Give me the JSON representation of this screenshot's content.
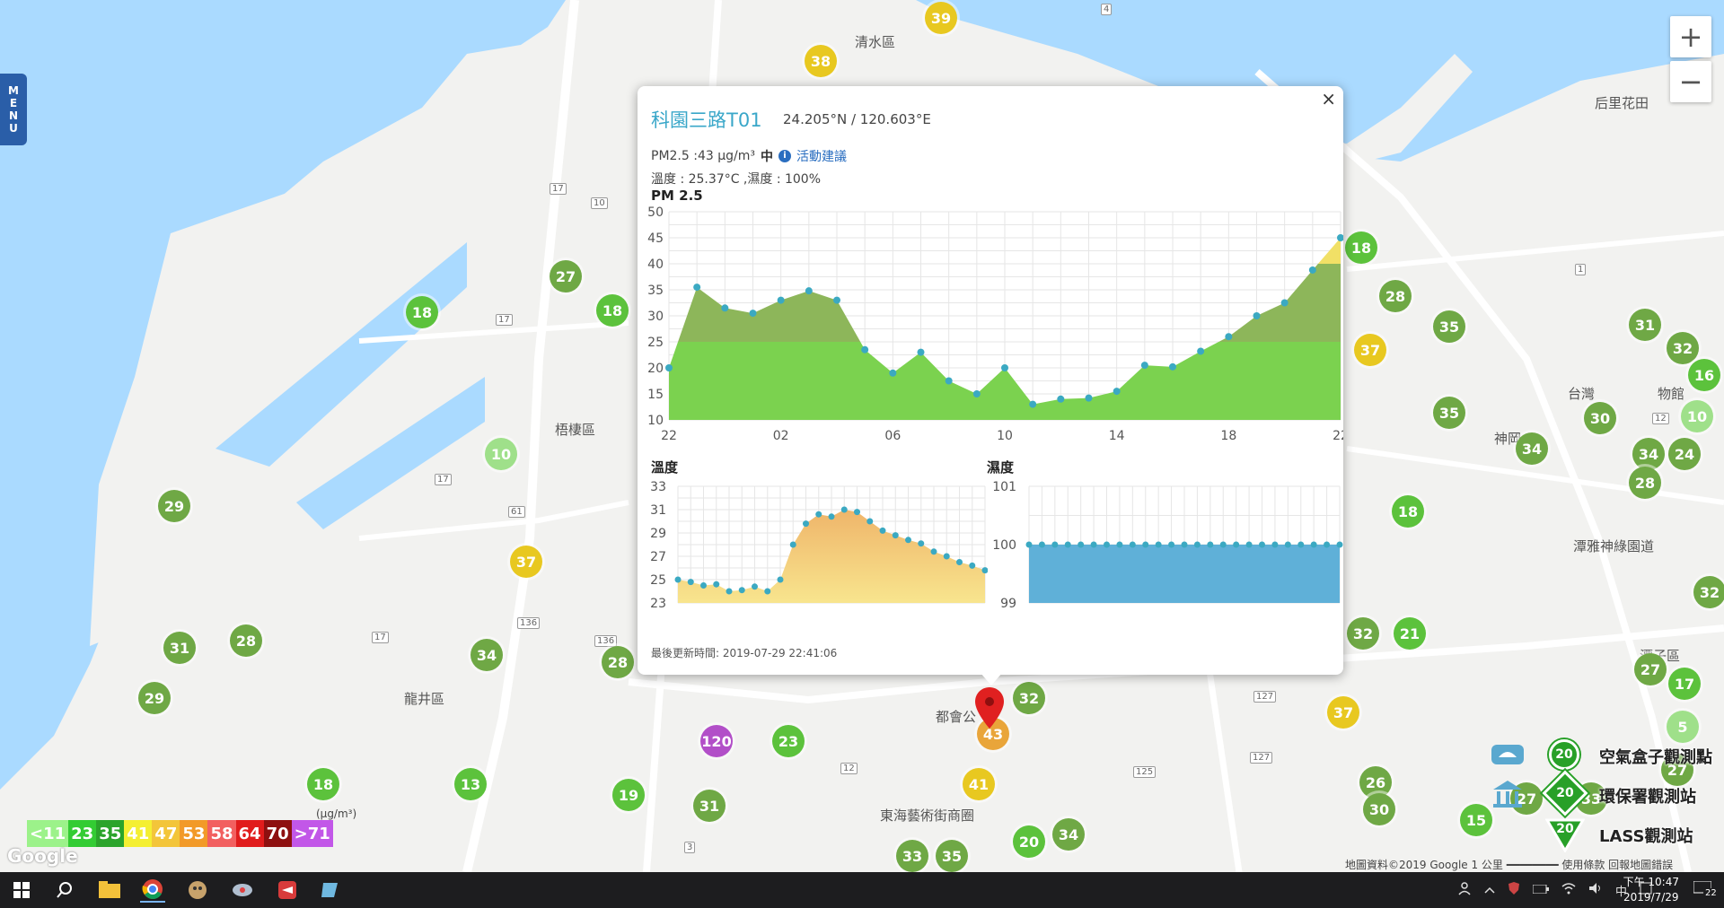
{
  "map": {
    "places": [
      "清水區",
      "梧棲區",
      "龍井區",
      "東海藝術街商圈",
      "都會公",
      "后里花田",
      "台灣",
      "物館",
      "神岡",
      "潭雅神綠園道",
      "潭子區"
    ],
    "road_numbers": [
      "17",
      "10",
      "17",
      "17",
      "17",
      "61",
      "136",
      "136",
      "12",
      "127",
      "127",
      "125",
      "1",
      "12",
      "3",
      "4"
    ],
    "markers": [
      {
        "value": "39",
        "color": "#e8c820"
      },
      {
        "value": "38",
        "color": "#e8c820"
      },
      {
        "value": "27",
        "color": "#6fa845"
      },
      {
        "value": "18",
        "color": "#5cc23c"
      },
      {
        "value": "18",
        "color": "#5cc23c"
      },
      {
        "value": "10",
        "color": "#9fe08a"
      },
      {
        "value": "29",
        "color": "#6fa845"
      },
      {
        "value": "37",
        "color": "#e8c820"
      },
      {
        "value": "31",
        "color": "#6fa845"
      },
      {
        "value": "28",
        "color": "#6fa845"
      },
      {
        "value": "29",
        "color": "#6fa845"
      },
      {
        "value": "34",
        "color": "#6fa845"
      },
      {
        "value": "28",
        "color": "#6fa845"
      },
      {
        "value": "18",
        "color": "#5cc23c"
      },
      {
        "value": "13",
        "color": "#5cc23c"
      },
      {
        "value": "19",
        "color": "#5cc23c"
      },
      {
        "value": "31",
        "color": "#6fa845"
      },
      {
        "value": "120",
        "color": "#b24fc8"
      },
      {
        "value": "23",
        "color": "#5cc23c"
      },
      {
        "value": "41",
        "color": "#e8c820"
      },
      {
        "value": "32",
        "color": "#6fa845"
      },
      {
        "value": "43",
        "color": "#e9a53a"
      },
      {
        "value": "33",
        "color": "#6fa845"
      },
      {
        "value": "35",
        "color": "#6fa845"
      },
      {
        "value": "20",
        "color": "#5cc23c"
      },
      {
        "value": "34",
        "color": "#6fa845"
      },
      {
        "value": "18",
        "color": "#5cc23c"
      },
      {
        "value": "28",
        "color": "#6fa845"
      },
      {
        "value": "37",
        "color": "#e8c820"
      },
      {
        "value": "35",
        "color": "#6fa845"
      },
      {
        "value": "31",
        "color": "#6fa845"
      },
      {
        "value": "32",
        "color": "#6fa845"
      },
      {
        "value": "16",
        "color": "#5cc23c"
      },
      {
        "value": "35",
        "color": "#6fa845"
      },
      {
        "value": "30",
        "color": "#6fa845"
      },
      {
        "value": "34",
        "color": "#6fa845"
      },
      {
        "value": "10",
        "color": "#9fe08a"
      },
      {
        "value": "34",
        "color": "#6fa845"
      },
      {
        "value": "24",
        "color": "#6fa845"
      },
      {
        "value": "28",
        "color": "#6fa845"
      },
      {
        "value": "18",
        "color": "#5cc23c"
      },
      {
        "value": "32",
        "color": "#6fa845"
      },
      {
        "value": "21",
        "color": "#5cc23c"
      },
      {
        "value": "37",
        "color": "#e8c820"
      },
      {
        "value": "27",
        "color": "#6fa845"
      },
      {
        "value": "17",
        "color": "#5cc23c"
      },
      {
        "value": "5",
        "color": "#9fe08a"
      },
      {
        "value": "26",
        "color": "#6fa845"
      },
      {
        "value": "30",
        "color": "#6fa845"
      },
      {
        "value": "15",
        "color": "#5cc23c"
      },
      {
        "value": "27",
        "color": "#6fa845"
      },
      {
        "value": "33",
        "color": "#6fa845"
      },
      {
        "value": "27",
        "color": "#6fa845"
      },
      {
        "value": "32",
        "color": "#6fa845"
      }
    ]
  },
  "menu_tab": {
    "letters": [
      "M",
      "E",
      "N",
      "U"
    ]
  },
  "zoom": {
    "in": "+",
    "out": "−"
  },
  "popup": {
    "close": "×",
    "station_name": "科園三路T01",
    "coords": "24.205°N / 120.603°E",
    "pm_text": "PM2.5 :43 μg/m³",
    "pm_level": "中",
    "info_glyph": "i",
    "activity_link": "活動建議",
    "weather": "溫度 : 25.37°C ,濕度 : 100%",
    "update_time": "最後更新時間: 2019-07-29 22:41:06"
  },
  "chart_data": [
    {
      "type": "area",
      "title": "PM 2.5",
      "x_ticks": [
        "22",
        "02",
        "06",
        "10",
        "14",
        "18",
        "22"
      ],
      "y_ticks": [
        "10",
        "15",
        "20",
        "25",
        "30",
        "35",
        "40",
        "45",
        "50"
      ],
      "ylim": [
        10,
        50
      ],
      "threshold": 25,
      "colors": {
        "base": "#7bd24f",
        "upper": "#8db65a",
        "top": "#f1e066",
        "point": "#3ba9c2"
      },
      "values": [
        20,
        35.5,
        31.5,
        30.5,
        33,
        34.8,
        33,
        23.5,
        19,
        23,
        17.5,
        15,
        20,
        13,
        14,
        14.2,
        15.5,
        20.5,
        20.2,
        23.2,
        26,
        30,
        32.5,
        38.8,
        45
      ]
    },
    {
      "type": "area",
      "title": "溫度",
      "y_ticks": [
        "23",
        "25",
        "27",
        "29",
        "31",
        "33"
      ],
      "ylim": [
        23,
        33
      ],
      "colors": {
        "top": "#efb56a",
        "bottom": "#f8e58e",
        "point": "#3ba9c2"
      },
      "values": [
        25,
        24.8,
        24.5,
        24.6,
        24,
        24.1,
        24.4,
        24,
        25,
        28,
        29.8,
        30.6,
        30.4,
        31,
        30.8,
        30,
        29.2,
        28.8,
        28.4,
        28.1,
        27.4,
        27,
        26.5,
        26.2,
        25.8
      ]
    },
    {
      "type": "area",
      "title": "濕度",
      "y_ticks": [
        "99",
        "100",
        "101"
      ],
      "ylim": [
        99,
        101
      ],
      "colors": {
        "fill": "#5fb0d8",
        "point": "#3ba9c2"
      },
      "values": [
        100,
        100,
        100,
        100,
        100,
        100,
        100,
        100,
        100,
        100,
        100,
        100,
        100,
        100,
        100,
        100,
        100,
        100,
        100,
        100,
        100,
        100,
        100,
        100,
        100
      ]
    }
  ],
  "legend": {
    "unit": "(μg/m³)",
    "cells": [
      {
        "label": "<11",
        "color": "#9cf28a",
        "text": "#ffffff"
      },
      {
        "label": "23",
        "color": "#33cc33",
        "text": "#ffffff"
      },
      {
        "label": "35",
        "color": "#2ba42b",
        "text": "#ffffff"
      },
      {
        "label": "41",
        "color": "#f4ef32",
        "text": "#ffffff"
      },
      {
        "label": "47",
        "color": "#f3c53a",
        "text": "#ffffff"
      },
      {
        "label": "53",
        "color": "#f29a28",
        "text": "#ffffff"
      },
      {
        "label": "58",
        "color": "#f26060",
        "text": "#ffffff"
      },
      {
        "label": "64",
        "color": "#e11c1c",
        "text": "#ffffff"
      },
      {
        "label": "70",
        "color": "#8e1010",
        "text": "#ffffff"
      },
      {
        "label": ">71",
        "color": "#c257e8",
        "text": "#ffffff"
      }
    ]
  },
  "google_logo": "Google",
  "layers": [
    {
      "label": "空氣盒子觀測點",
      "marker": "20"
    },
    {
      "label": "環保署觀測站",
      "marker": "20"
    },
    {
      "label": "LASS觀測站",
      "marker": "20"
    }
  ],
  "attribution": {
    "text": "地圖資料©2019 Google   1 公里 ━━━━━━━━   使用條款   回報地圖錯誤"
  },
  "taskbar": {
    "ime": "中",
    "time": "下午 10:47",
    "date": "2019/7/29",
    "notifications": "22"
  }
}
